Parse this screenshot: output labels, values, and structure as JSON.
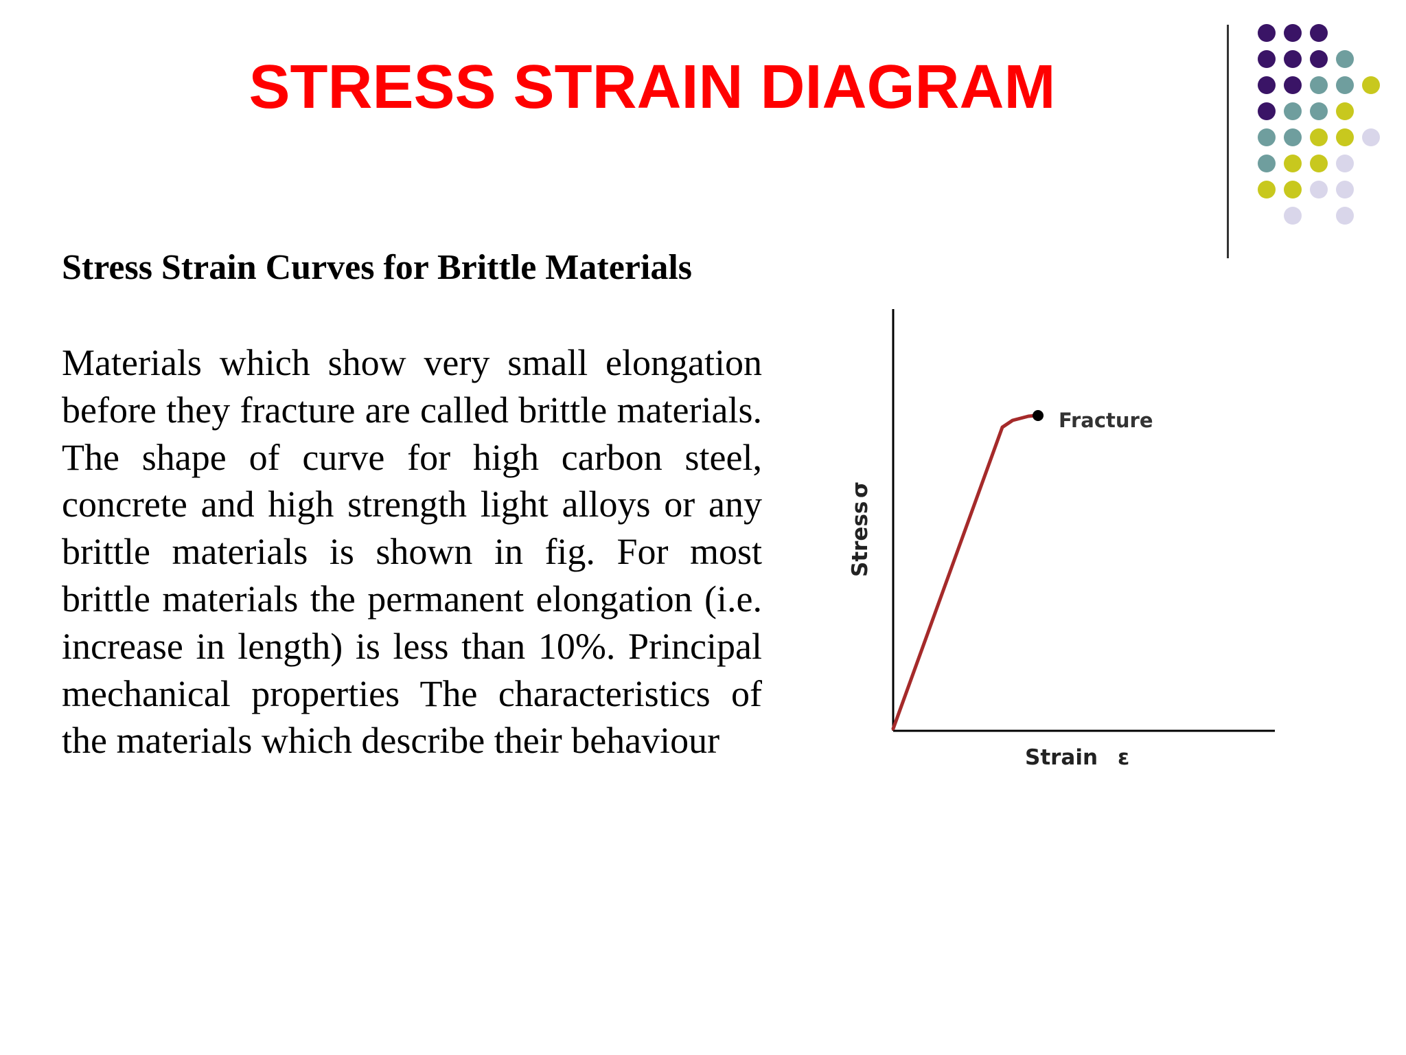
{
  "slide": {
    "title": "STRESS STRAIN DIAGRAM",
    "subtitle": "Stress Strain Curves for Brittle Materials",
    "body": "Materials which show very small elongation before they fracture are called brittle materials. The shape of curve for high carbon steel, concrete and high strength light alloys or any brittle materials is shown in fig. For most brittle materials the permanent elongation (i.e. increase in length) is less than 10%. Principal mechanical properties The characteristics of the materials which describe their behaviour"
  },
  "decoration": {
    "dot_colors": [
      "#3a1466",
      "#6f9e9e",
      "#c8c81e",
      "#d9d6ea"
    ],
    "divider_color": "#333333"
  },
  "figure": {
    "fracture_label": "Fracture",
    "xlabel": "Strain",
    "xsymbol": "ε",
    "ylabel": "Stress",
    "ysymbol": "σ",
    "curve_color": "#a52a2a",
    "axis_color": "#000000"
  }
}
